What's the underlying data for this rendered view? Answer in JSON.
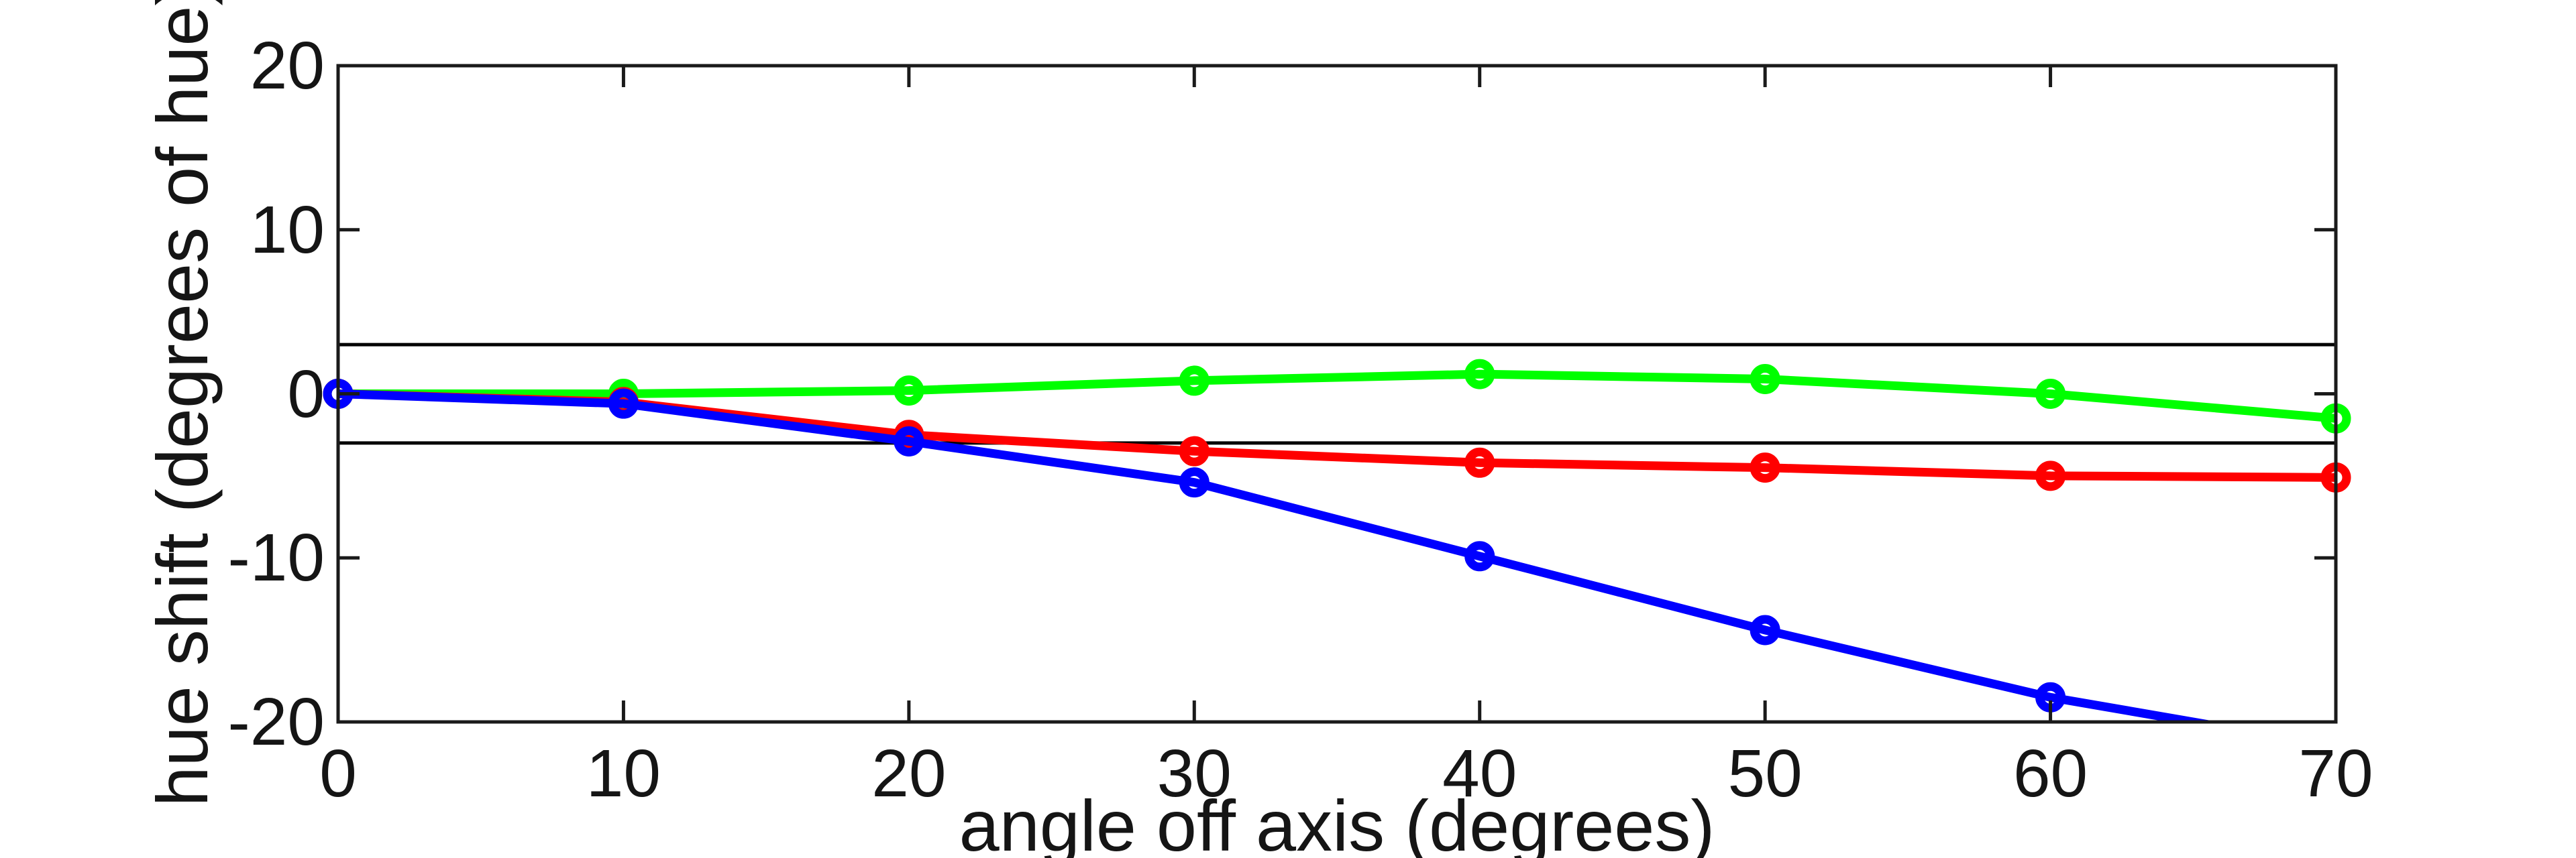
{
  "figure": {
    "background_color": "#ffffff",
    "text_color": "#151515",
    "axis_color": "#1a1a1a"
  },
  "chart_data": {
    "type": "line",
    "title": "",
    "xlabel": "angle off axis (degrees)",
    "ylabel": "hue shift (degrees of hue)",
    "xlim": [
      0,
      70
    ],
    "ylim": [
      -20,
      20
    ],
    "x_ticks": [
      0,
      10,
      20,
      30,
      40,
      50,
      60,
      70
    ],
    "y_ticks": [
      -20,
      -10,
      0,
      10,
      20
    ],
    "grid": false,
    "legend_position": "none",
    "tick_style": "inward, mirrored on all four sides",
    "marker": "open-circle",
    "x": [
      0,
      10,
      20,
      30,
      40,
      50,
      60,
      70
    ],
    "series": [
      {
        "name": "green-curve",
        "color": "#00ff00",
        "values": [
          0,
          0,
          0.2,
          0.8,
          1.2,
          0.9,
          0,
          -1.5
        ]
      },
      {
        "name": "red-curve",
        "color": "#ff0000",
        "values": [
          0,
          -0.5,
          -2.5,
          -3.5,
          -4.2,
          -4.5,
          -5.0,
          -5.1
        ]
      },
      {
        "name": "blue-curve",
        "color": "#0000ff",
        "values": [
          0,
          -0.6,
          -2.9,
          -5.4,
          -9.9,
          -14.4,
          -18.5,
          -21.5
        ]
      }
    ],
    "reference_lines": {
      "color": "#000000",
      "values": [
        3,
        -3
      ]
    }
  }
}
